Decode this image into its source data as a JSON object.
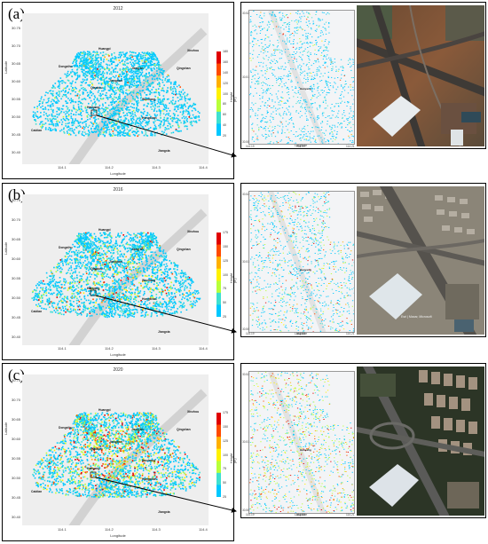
{
  "colormap": [
    "#00c8ff",
    "#3fe0d0",
    "#b8ff3a",
    "#fff200",
    "#ffb000",
    "#ff4a00",
    "#e00000"
  ],
  "rows": [
    {
      "label": "(a)",
      "year": "2012",
      "xlabel": "Longitude",
      "ylabel": "Latitude",
      "yticks": [
        "30.75",
        "30.70",
        "30.65",
        "30.60",
        "30.55",
        "30.50",
        "30.45",
        "30.40"
      ],
      "xticks": [
        "114.1",
        "114.2",
        "114.3",
        "114.4"
      ],
      "districts": [
        "Dongxihu",
        "Jiang'an",
        "Qiaokou",
        "Jianghan",
        "Qingshan",
        "Hanyang",
        "Wuchang",
        "Hongshan",
        "Caidian",
        "Jiangxia",
        "Huangpi",
        "Xinzhou"
      ],
      "colorbar_ticks": [
        "180",
        "160",
        "140",
        "120",
        "100",
        "80",
        "60",
        "40",
        "20"
      ],
      "colorbar_label": "Height (m)",
      "density": 1.0,
      "warm_share": 0.05,
      "zoom_ytick": [
        "30.52",
        "30.51",
        "30.50"
      ],
      "zoom_xtick": [
        "114.19",
        "114.20",
        "114.21"
      ],
      "zoom_center": "Hanyang",
      "zoom_xlabel": "Longitude",
      "sat_caption": ""
    },
    {
      "label": "(b)",
      "year": "2016",
      "xlabel": "Longitude",
      "ylabel": "Latitude",
      "yticks": [
        "30.75",
        "30.70",
        "30.65",
        "30.60",
        "30.55",
        "30.50",
        "30.45",
        "30.40"
      ],
      "xticks": [
        "114.1",
        "114.2",
        "114.3",
        "114.4"
      ],
      "districts": [
        "Dongxihu",
        "Jiang'an",
        "Qiaokou",
        "Jianghan",
        "Qingshan",
        "Hanyang",
        "Wuchang",
        "Hongshan",
        "Caidian",
        "Jiangxia",
        "Huangpi",
        "Xinzhou"
      ],
      "colorbar_ticks": [
        "175",
        "150",
        "125",
        "100",
        "75",
        "50",
        "25"
      ],
      "colorbar_label": "Height (m)",
      "density": 1.05,
      "warm_share": 0.18,
      "zoom_ytick": [
        "30.52",
        "30.51",
        "30.50"
      ],
      "zoom_xtick": [
        "114.19",
        "114.20",
        "114.21"
      ],
      "zoom_center": "Hanyang",
      "zoom_xlabel": "Longitude",
      "sat_caption": "Esri | Maxar, Microsoft"
    },
    {
      "label": "(c)",
      "year": "2020",
      "xlabel": "Longitude",
      "ylabel": "Latitude",
      "yticks": [
        "30.75",
        "30.70",
        "30.65",
        "30.60",
        "30.55",
        "30.50",
        "30.45",
        "30.40"
      ],
      "xticks": [
        "114.1",
        "114.2",
        "114.3",
        "114.4"
      ],
      "districts": [
        "Dongxihu",
        "Jiang'an",
        "Qiaokou",
        "Jianghan",
        "Qingshan",
        "Hanyang",
        "Wuchang",
        "Hongshan",
        "Caidian",
        "Jiangxia",
        "Huangpi",
        "Xinzhou"
      ],
      "colorbar_ticks": [
        "175",
        "150",
        "125",
        "100",
        "75",
        "50",
        "25"
      ],
      "colorbar_label": "Height (m)",
      "density": 1.12,
      "warm_share": 0.38,
      "zoom_ytick": [
        "30.52",
        "30.51",
        "30.50"
      ],
      "zoom_xtick": [
        "114.19",
        "114.20",
        "114.21"
      ],
      "zoom_center": "Hanyang",
      "zoom_xlabel": "Longitude",
      "sat_caption": ""
    }
  ]
}
